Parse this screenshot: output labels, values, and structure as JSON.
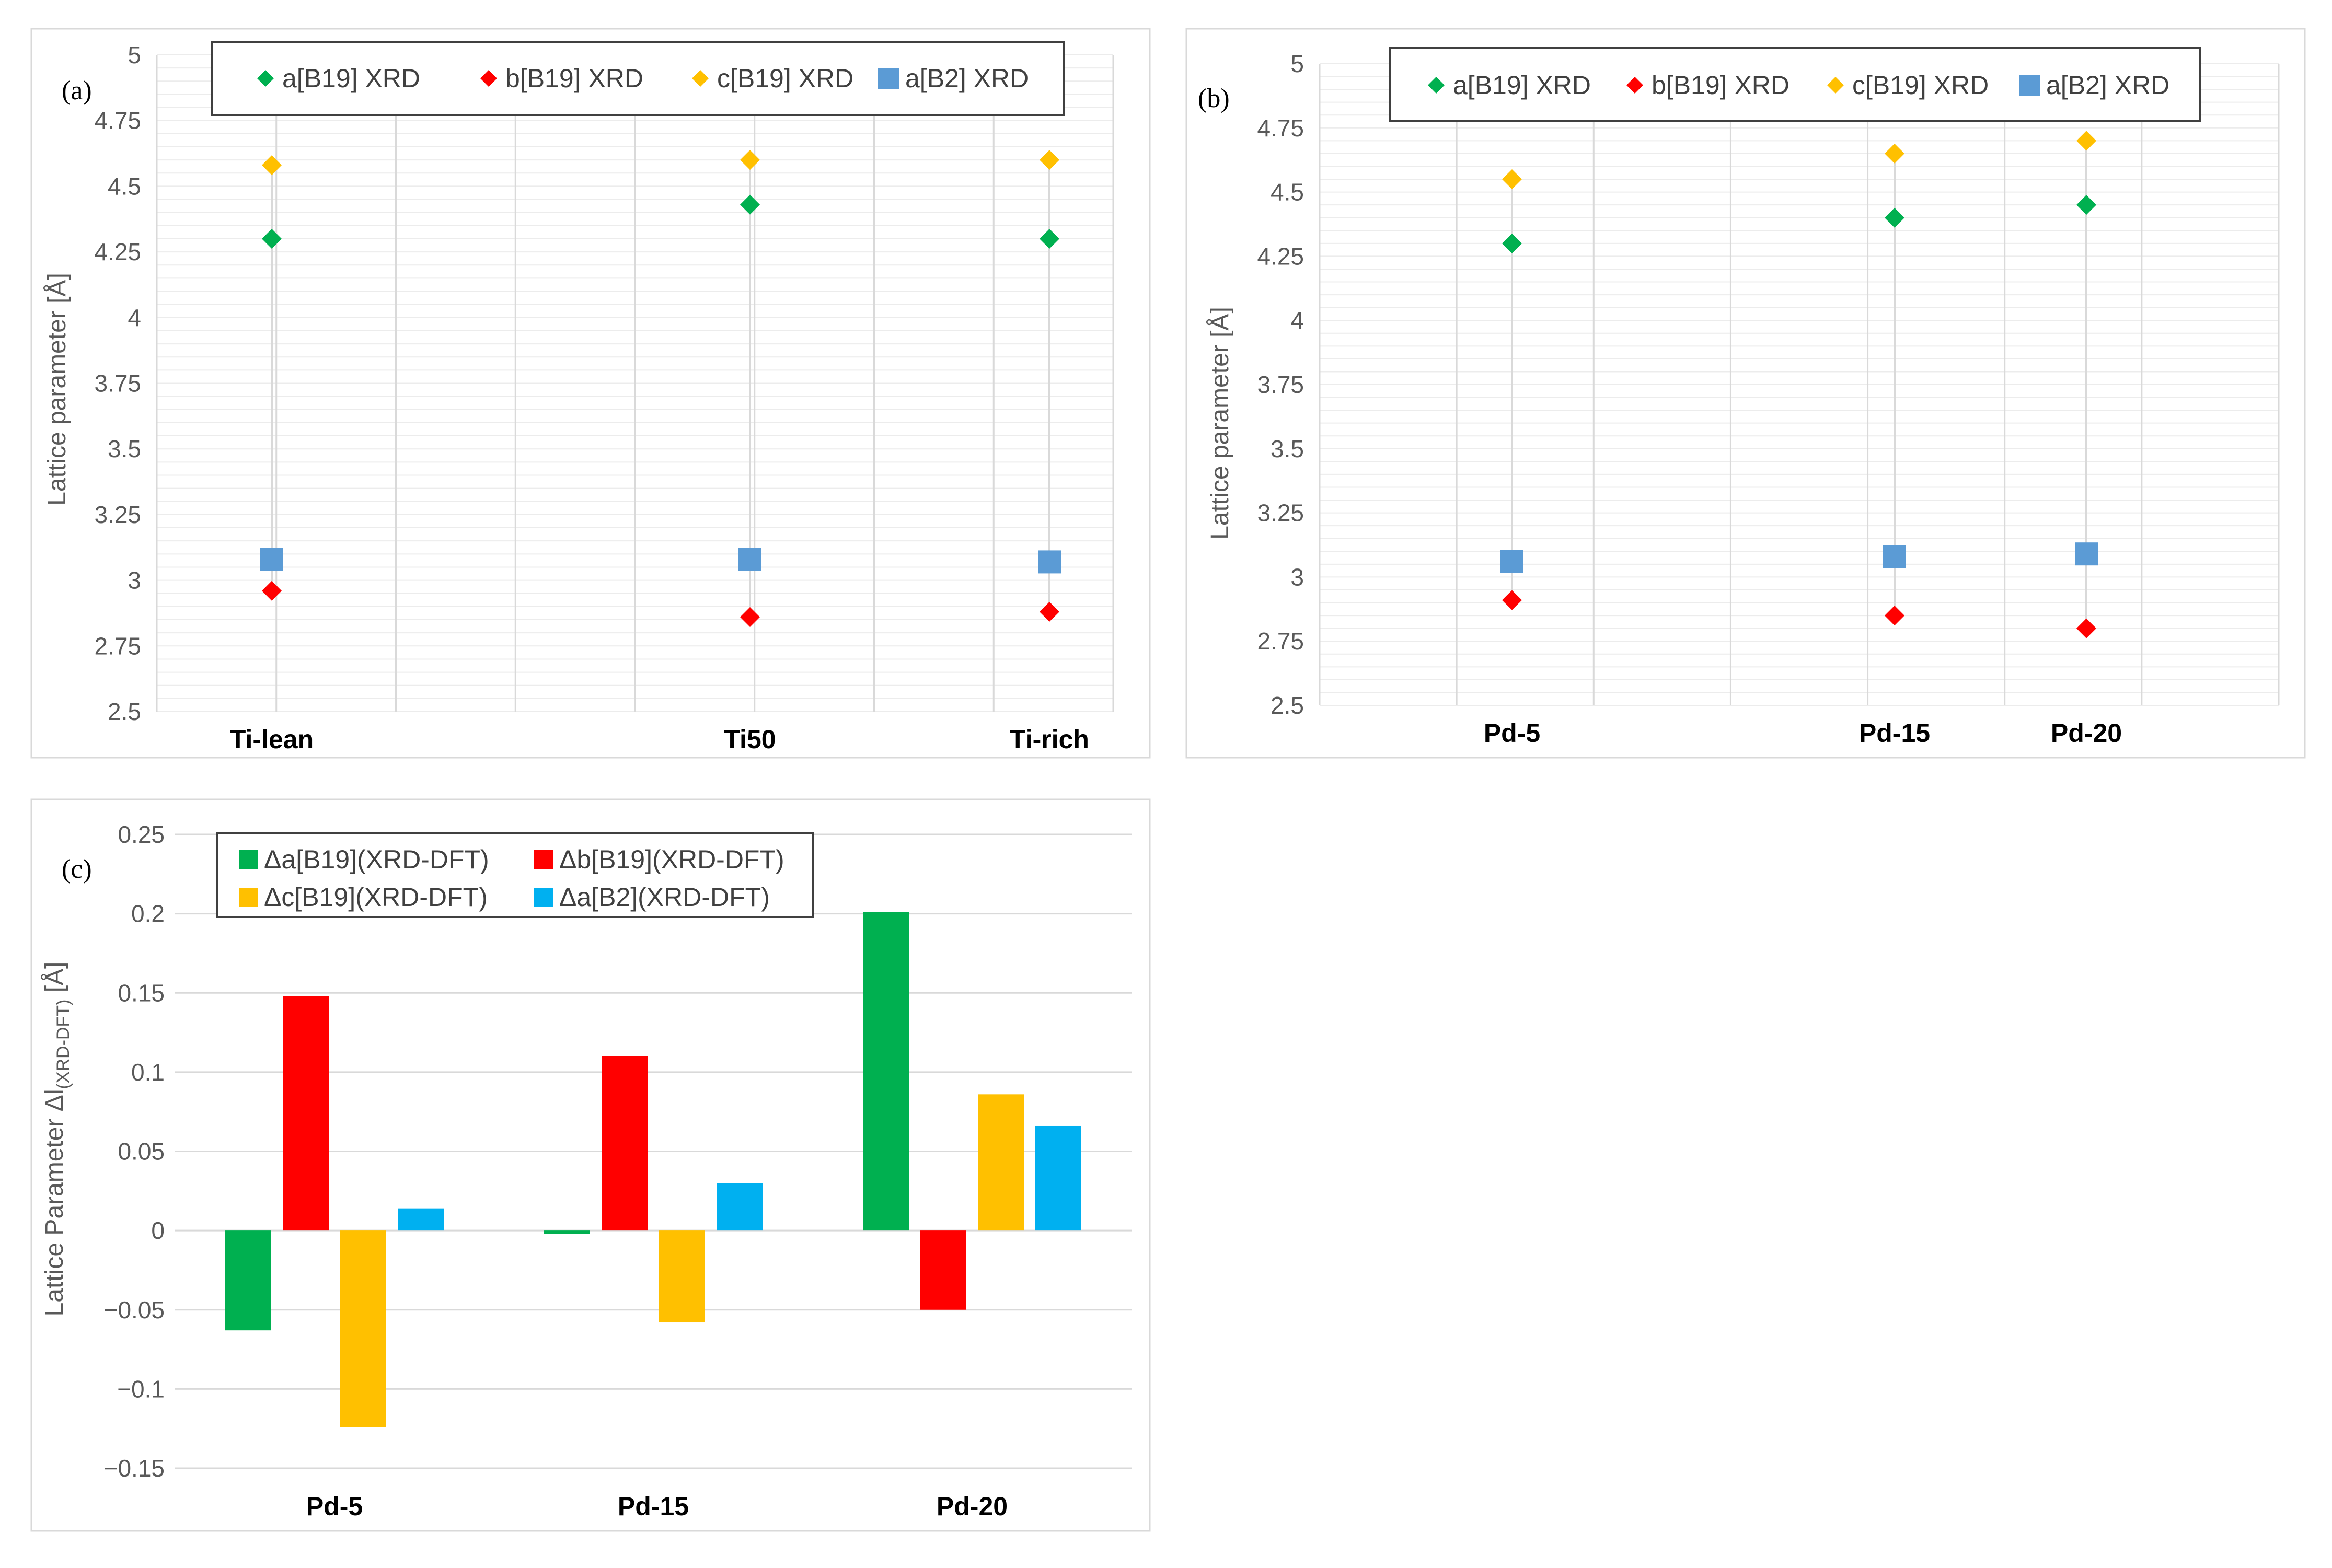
{
  "chart_data": [
    {
      "panel_label": "(a)",
      "type": "scatter",
      "categories": [
        "Ti-lean",
        "Ti50",
        "Ti-rich"
      ],
      "ylabel": "Lattice parameter [Å]",
      "ylim": [
        2.5,
        5
      ],
      "yticks": [
        "2.5",
        "2.75",
        "3",
        "3.25",
        "3.5",
        "3.75",
        "4",
        "4.25",
        "4.5",
        "4.75",
        "5"
      ],
      "legend_position": "top",
      "series": [
        {
          "name": "a[B19] XRD",
          "color": "#00B050",
          "marker": "diamond",
          "values": [
            4.3,
            4.43,
            4.3
          ]
        },
        {
          "name": "b[B19] XRD",
          "color": "#FF0000",
          "marker": "diamond",
          "values": [
            2.96,
            2.86,
            2.88
          ]
        },
        {
          "name": "c[B19] XRD",
          "color": "#FFC000",
          "marker": "diamond",
          "values": [
            4.58,
            4.6,
            4.6
          ]
        },
        {
          "name": "a[B2] XRD",
          "color": "#5B9BD5",
          "marker": "square",
          "values": [
            3.08,
            3.08,
            3.07
          ]
        }
      ]
    },
    {
      "panel_label": "(b)",
      "type": "scatter",
      "categories": [
        "Pd-5",
        "Pd-15",
        "Pd-20"
      ],
      "ylabel": "Lattice parameter [Å]",
      "ylim": [
        2.5,
        5
      ],
      "yticks": [
        "2.5",
        "2.75",
        "3",
        "3.25",
        "3.5",
        "3.75",
        "4",
        "4.25",
        "4.5",
        "4.75",
        "5"
      ],
      "legend_position": "top",
      "series": [
        {
          "name": "a[B19] XRD",
          "color": "#00B050",
          "marker": "diamond",
          "values": [
            4.3,
            4.4,
            4.45
          ]
        },
        {
          "name": "b[B19] XRD",
          "color": "#FF0000",
          "marker": "diamond",
          "values": [
            2.91,
            2.85,
            2.8
          ]
        },
        {
          "name": "c[B19] XRD",
          "color": "#FFC000",
          "marker": "diamond",
          "values": [
            4.55,
            4.65,
            4.7
          ]
        },
        {
          "name": "a[B2] XRD",
          "color": "#5B9BD5",
          "marker": "square",
          "values": [
            3.06,
            3.08,
            3.09
          ]
        }
      ]
    },
    {
      "panel_label": "(c)",
      "type": "bar",
      "categories": [
        "Pd-5",
        "Pd-15",
        "Pd-20"
      ],
      "ylabel_main": "Lattice Parameter Δl",
      "ylabel_sub": "(XRD-DFT)",
      "ylabel_unit": " [Å]",
      "ylim": [
        -0.15,
        0.25
      ],
      "yticks": [
        "−0.15",
        "−0.1",
        "−0.05",
        "0",
        "0.05",
        "0.1",
        "0.15",
        "0.2",
        "0.25"
      ],
      "legend_position": "top-left",
      "series": [
        {
          "name": "Δa[B19](XRD-DFT)",
          "color": "#00B050",
          "values": [
            -0.063,
            -0.002,
            0.201
          ]
        },
        {
          "name": "Δb[B19](XRD-DFT)",
          "color": "#FF0000",
          "values": [
            0.148,
            0.11,
            -0.05
          ]
        },
        {
          "name": "Δc[B19](XRD-DFT)",
          "color": "#FFC000",
          "values": [
            -0.124,
            -0.058,
            0.086
          ]
        },
        {
          "name": "Δa[B2](XRD-DFT)",
          "color": "#00B0F0",
          "values": [
            0.014,
            0.03,
            0.066
          ]
        }
      ]
    }
  ]
}
